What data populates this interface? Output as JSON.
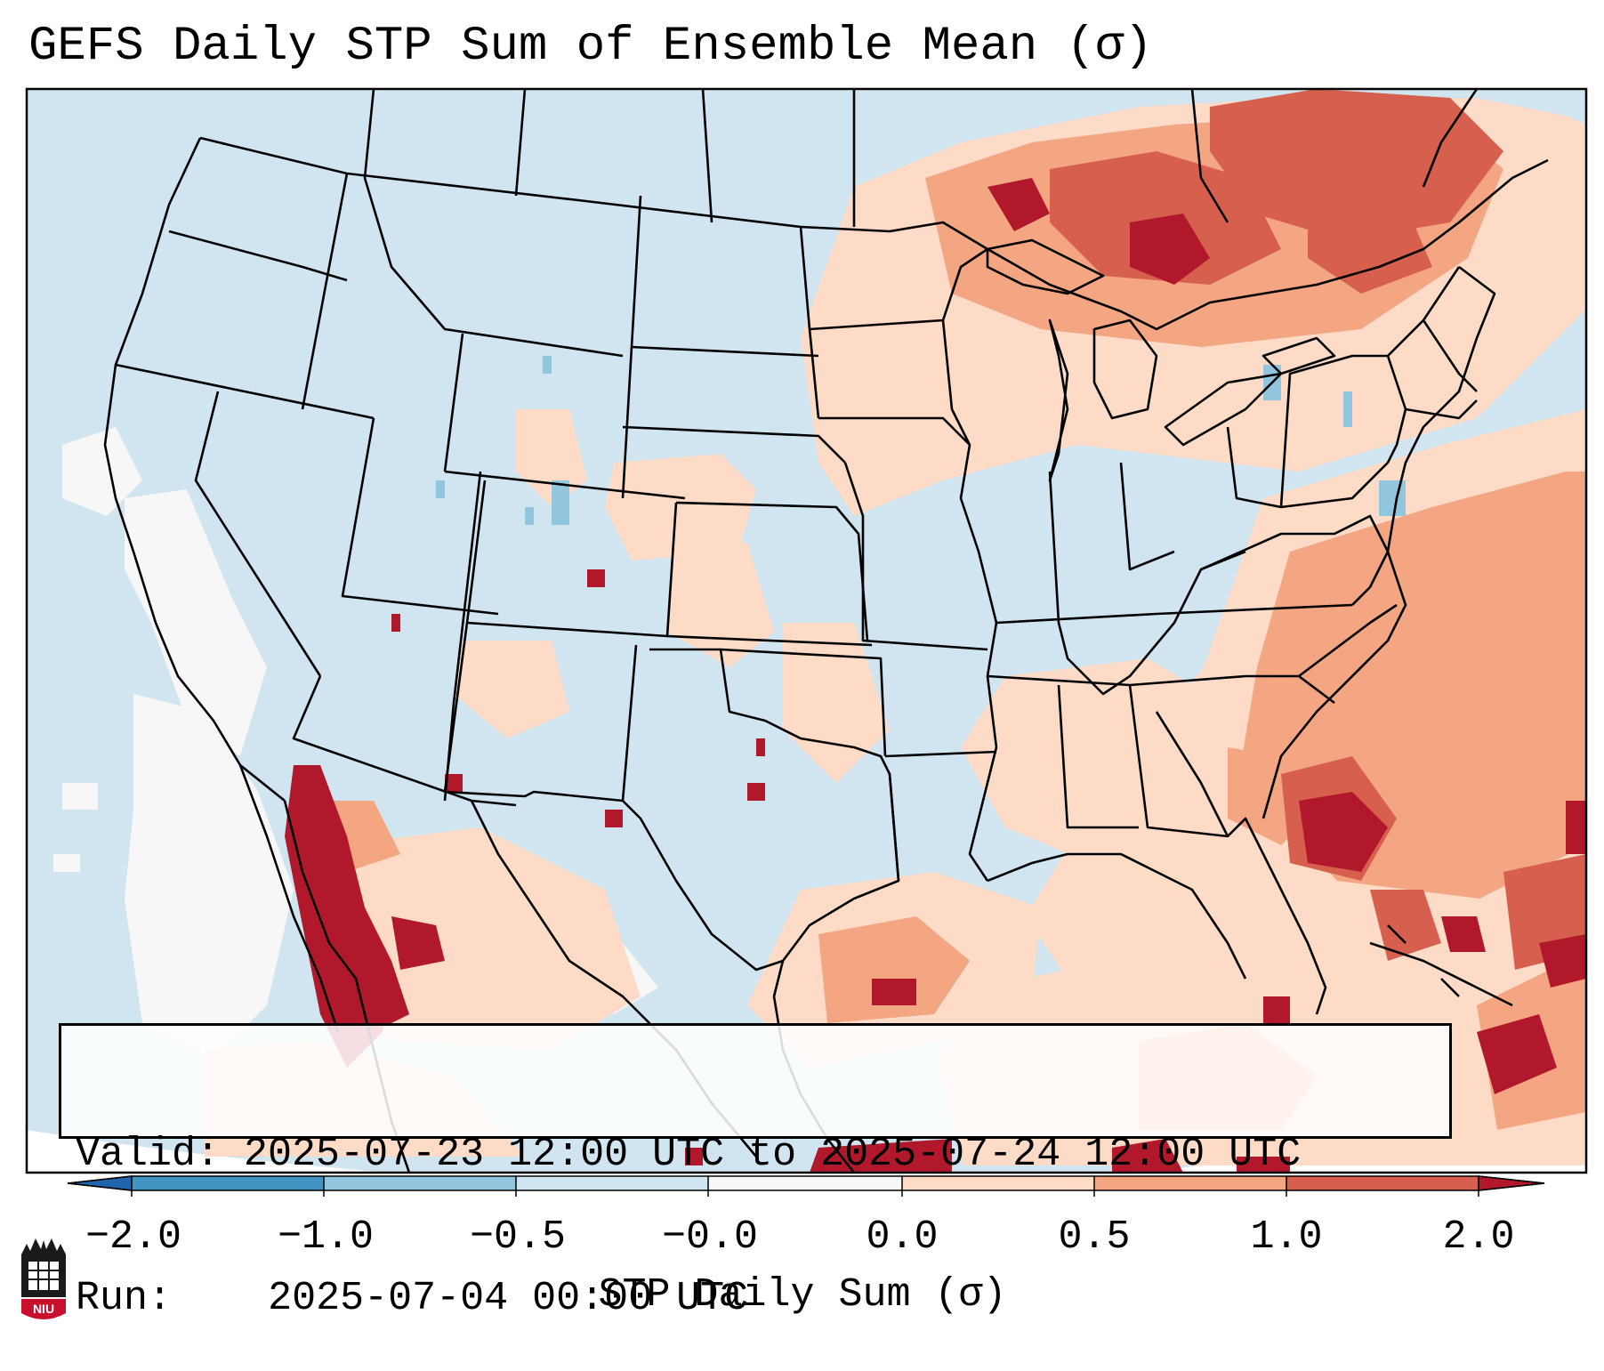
{
  "title": "GEFS Daily STP Sum of Ensemble Mean (σ)",
  "info": {
    "valid_label": "Valid:",
    "valid_value": "2025-07-23 12:00 UTC to 2025-07-24 12:00 UTC",
    "run_label": "Run:",
    "run_value": "2025-07-04 00:00 UTC"
  },
  "colorbar": {
    "label": "STP Daily Sum (σ)",
    "ticks": [
      "−2.0",
      "−1.0",
      "−0.5",
      "−0.0",
      "0.0",
      "0.5",
      "1.0",
      "2.0"
    ],
    "bins": [
      {
        "range": "< -2.0",
        "color": "#2166ac"
      },
      {
        "range": "-2.0 to -1.0",
        "color": "#4393c3"
      },
      {
        "range": "-1.0 to -0.5",
        "color": "#92c5de"
      },
      {
        "range": "-0.5 to -0.0",
        "color": "#d1e5f0"
      },
      {
        "range": "-0.0 to 0.0",
        "color": "#f7f7f7"
      },
      {
        "range": "0.0 to 0.5",
        "color": "#fddbc7"
      },
      {
        "range": "0.5 to 1.0",
        "color": "#f4a582"
      },
      {
        "range": "1.0 to 2.0",
        "color": "#d6604d"
      },
      {
        "range": "> 2.0",
        "color": "#b2182b"
      }
    ]
  },
  "map": {
    "background_color": "#d1e5f0",
    "region": "Continental United States, southern Canada, northern Mexico, Gulf of Mexico, Caribbean"
  },
  "logo": {
    "text": "NIU",
    "color": "#c8102e"
  }
}
